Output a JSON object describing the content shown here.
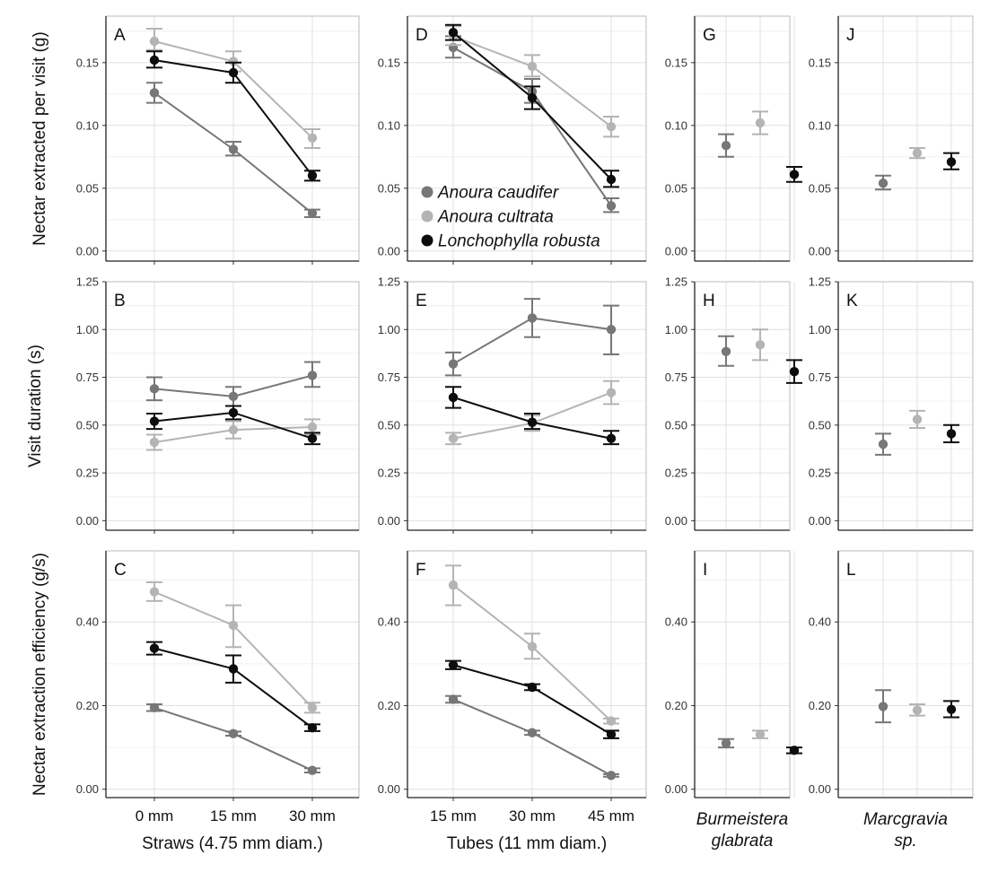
{
  "colors": {
    "Anoura caudifer": "#777777",
    "Anoura cultrata": "#b4b4b4",
    "Lonchophylla robusta": "#0d0d0d"
  },
  "chart_data": {
    "type": "line",
    "legend": {
      "entries": [
        "Anoura caudifer",
        "Anoura cultrata",
        "Lonchophylla robusta"
      ],
      "placement": "panel D, bottom-left"
    },
    "row_ylabels": [
      "Nectar extracted per visit (g)",
      "Visit duration (s)",
      "Nectar extraction efficiency (g/s)"
    ],
    "row_ticks": [
      [
        "0.00",
        "0.05",
        "0.10",
        "0.15"
      ],
      [
        "0.00",
        "0.25",
        "0.50",
        "0.75",
        "1.00",
        "1.25"
      ],
      [
        "0.00",
        "0.20",
        "0.40"
      ]
    ],
    "row_ranges": [
      [
        -0.008,
        0.187
      ],
      [
        -0.05,
        1.25
      ],
      [
        -0.02,
        0.57
      ]
    ],
    "column_xlabels": [
      {
        "line1": "Straws (4.75 mm diam.)",
        "italic": false
      },
      {
        "line1": "Tubes (11 mm diam.)",
        "italic": false
      },
      {
        "line1": "Burmeistera",
        "line2": "glabrata",
        "italic": true
      },
      {
        "line1": "Marcgravia",
        "line2": "sp.",
        "italic": true
      }
    ],
    "column_categories": [
      [
        "0 mm",
        "15 mm",
        "30 mm"
      ],
      [
        "15 mm",
        "30 mm",
        "45 mm"
      ],
      [],
      []
    ],
    "panels": [
      {
        "label": "A",
        "row": 0,
        "col": 0,
        "connected": true,
        "series": [
          {
            "name": "Anoura caudifer",
            "points": [
              {
                "y": 0.126,
                "lo": 0.118,
                "hi": 0.134
              },
              {
                "y": 0.081,
                "lo": 0.076,
                "hi": 0.087
              },
              {
                "y": 0.03,
                "lo": 0.027,
                "hi": 0.033
              }
            ]
          },
          {
            "name": "Anoura cultrata",
            "points": [
              {
                "y": 0.167,
                "lo": 0.16,
                "hi": 0.177
              },
              {
                "y": 0.151,
                "lo": 0.143,
                "hi": 0.159
              },
              {
                "y": 0.09,
                "lo": 0.082,
                "hi": 0.097
              }
            ]
          },
          {
            "name": "Lonchophylla robusta",
            "points": [
              {
                "y": 0.152,
                "lo": 0.146,
                "hi": 0.159
              },
              {
                "y": 0.142,
                "lo": 0.134,
                "hi": 0.15
              },
              {
                "y": 0.06,
                "lo": 0.056,
                "hi": 0.064
              }
            ]
          }
        ]
      },
      {
        "label": "B",
        "row": 1,
        "col": 0,
        "connected": true,
        "series": [
          {
            "name": "Anoura caudifer",
            "points": [
              {
                "y": 0.69,
                "lo": 0.63,
                "hi": 0.75
              },
              {
                "y": 0.65,
                "lo": 0.6,
                "hi": 0.7
              },
              {
                "y": 0.76,
                "lo": 0.7,
                "hi": 0.83
              }
            ]
          },
          {
            "name": "Anoura cultrata",
            "points": [
              {
                "y": 0.41,
                "lo": 0.37,
                "hi": 0.45
              },
              {
                "y": 0.475,
                "lo": 0.43,
                "hi": 0.52
              },
              {
                "y": 0.49,
                "lo": 0.45,
                "hi": 0.53
              }
            ]
          },
          {
            "name": "Lonchophylla robusta",
            "points": [
              {
                "y": 0.52,
                "lo": 0.48,
                "hi": 0.56
              },
              {
                "y": 0.565,
                "lo": 0.53,
                "hi": 0.6
              },
              {
                "y": 0.43,
                "lo": 0.4,
                "hi": 0.46
              }
            ]
          }
        ]
      },
      {
        "label": "C",
        "row": 2,
        "col": 0,
        "connected": true,
        "series": [
          {
            "name": "Anoura caudifer",
            "points": [
              {
                "y": 0.195,
                "lo": 0.187,
                "hi": 0.203
              },
              {
                "y": 0.133,
                "lo": 0.128,
                "hi": 0.138
              },
              {
                "y": 0.045,
                "lo": 0.04,
                "hi": 0.05
              }
            ]
          },
          {
            "name": "Anoura cultrata",
            "points": [
              {
                "y": 0.472,
                "lo": 0.45,
                "hi": 0.495
              },
              {
                "y": 0.392,
                "lo": 0.34,
                "hi": 0.44
              },
              {
                "y": 0.195,
                "lo": 0.183,
                "hi": 0.207
              }
            ]
          },
          {
            "name": "Lonchophylla robusta",
            "points": [
              {
                "y": 0.337,
                "lo": 0.322,
                "hi": 0.352
              },
              {
                "y": 0.288,
                "lo": 0.255,
                "hi": 0.32
              },
              {
                "y": 0.147,
                "lo": 0.139,
                "hi": 0.155
              }
            ]
          }
        ]
      },
      {
        "label": "D",
        "row": 0,
        "col": 1,
        "connected": true,
        "series": [
          {
            "name": "Anoura caudifer",
            "points": [
              {
                "y": 0.162,
                "lo": 0.154,
                "hi": 0.171
              },
              {
                "y": 0.127,
                "lo": 0.118,
                "hi": 0.137
              },
              {
                "y": 0.036,
                "lo": 0.031,
                "hi": 0.042
              }
            ]
          },
          {
            "name": "Anoura cultrata",
            "points": [
              {
                "y": 0.171,
                "lo": 0.164,
                "hi": 0.179
              },
              {
                "y": 0.147,
                "lo": 0.139,
                "hi": 0.156
              },
              {
                "y": 0.099,
                "lo": 0.091,
                "hi": 0.107
              }
            ]
          },
          {
            "name": "Lonchophylla robusta",
            "points": [
              {
                "y": 0.174,
                "lo": 0.168,
                "hi": 0.18
              },
              {
                "y": 0.122,
                "lo": 0.113,
                "hi": 0.131
              },
              {
                "y": 0.057,
                "lo": 0.051,
                "hi": 0.064
              }
            ]
          }
        ]
      },
      {
        "label": "E",
        "row": 1,
        "col": 1,
        "connected": true,
        "series": [
          {
            "name": "Anoura caudifer",
            "points": [
              {
                "y": 0.82,
                "lo": 0.76,
                "hi": 0.88
              },
              {
                "y": 1.06,
                "lo": 0.96,
                "hi": 1.16
              },
              {
                "y": 1.0,
                "lo": 0.87,
                "hi": 1.125
              }
            ]
          },
          {
            "name": "Anoura cultrata",
            "points": [
              {
                "y": 0.43,
                "lo": 0.4,
                "hi": 0.46
              },
              {
                "y": 0.51,
                "lo": 0.47,
                "hi": 0.55
              },
              {
                "y": 0.67,
                "lo": 0.61,
                "hi": 0.73
              }
            ]
          },
          {
            "name": "Lonchophylla robusta",
            "points": [
              {
                "y": 0.645,
                "lo": 0.59,
                "hi": 0.7
              },
              {
                "y": 0.515,
                "lo": 0.48,
                "hi": 0.56
              },
              {
                "y": 0.43,
                "lo": 0.4,
                "hi": 0.47
              }
            ]
          }
        ]
      },
      {
        "label": "F",
        "row": 2,
        "col": 1,
        "connected": true,
        "series": [
          {
            "name": "Anoura caudifer",
            "points": [
              {
                "y": 0.215,
                "lo": 0.207,
                "hi": 0.223
              },
              {
                "y": 0.135,
                "lo": 0.13,
                "hi": 0.14
              },
              {
                "y": 0.033,
                "lo": 0.03,
                "hi": 0.036
              }
            ]
          },
          {
            "name": "Anoura cultrata",
            "points": [
              {
                "y": 0.488,
                "lo": 0.44,
                "hi": 0.535
              },
              {
                "y": 0.341,
                "lo": 0.312,
                "hi": 0.372
              },
              {
                "y": 0.163,
                "lo": 0.157,
                "hi": 0.169
              }
            ]
          },
          {
            "name": "Lonchophylla robusta",
            "points": [
              {
                "y": 0.297,
                "lo": 0.287,
                "hi": 0.307
              },
              {
                "y": 0.244,
                "lo": 0.237,
                "hi": 0.251
              },
              {
                "y": 0.131,
                "lo": 0.122,
                "hi": 0.14
              }
            ]
          }
        ]
      },
      {
        "label": "G",
        "row": 0,
        "col": 2,
        "connected": false,
        "series": [
          {
            "name": "Anoura caudifer",
            "points": [
              {
                "y": 0.084,
                "lo": 0.075,
                "hi": 0.093
              }
            ]
          },
          {
            "name": "Anoura cultrata",
            "points": [
              {
                "y": 0.102,
                "lo": 0.093,
                "hi": 0.111
              }
            ]
          },
          {
            "name": "Lonchophylla robusta",
            "points": [
              {
                "y": 0.061,
                "lo": 0.055,
                "hi": 0.067
              }
            ]
          }
        ]
      },
      {
        "label": "H",
        "row": 1,
        "col": 2,
        "connected": false,
        "series": [
          {
            "name": "Anoura caudifer",
            "points": [
              {
                "y": 0.885,
                "lo": 0.81,
                "hi": 0.965
              }
            ]
          },
          {
            "name": "Anoura cultrata",
            "points": [
              {
                "y": 0.92,
                "lo": 0.84,
                "hi": 1.0
              }
            ]
          },
          {
            "name": "Lonchophylla robusta",
            "points": [
              {
                "y": 0.78,
                "lo": 0.72,
                "hi": 0.84
              }
            ]
          }
        ]
      },
      {
        "label": "I",
        "row": 2,
        "col": 2,
        "connected": false,
        "series": [
          {
            "name": "Anoura caudifer",
            "points": [
              {
                "y": 0.11,
                "lo": 0.1,
                "hi": 0.12
              }
            ]
          },
          {
            "name": "Anoura cultrata",
            "points": [
              {
                "y": 0.131,
                "lo": 0.122,
                "hi": 0.14
              }
            ]
          },
          {
            "name": "Lonchophylla robusta",
            "points": [
              {
                "y": 0.093,
                "lo": 0.086,
                "hi": 0.1
              }
            ]
          }
        ]
      },
      {
        "label": "J",
        "row": 0,
        "col": 3,
        "connected": false,
        "series": [
          {
            "name": "Anoura caudifer",
            "points": [
              {
                "y": 0.054,
                "lo": 0.049,
                "hi": 0.06
              }
            ]
          },
          {
            "name": "Anoura cultrata",
            "points": [
              {
                "y": 0.078,
                "lo": 0.074,
                "hi": 0.082
              }
            ]
          },
          {
            "name": "Lonchophylla robusta",
            "points": [
              {
                "y": 0.071,
                "lo": 0.065,
                "hi": 0.078
              }
            ]
          }
        ]
      },
      {
        "label": "K",
        "row": 1,
        "col": 3,
        "connected": false,
        "series": [
          {
            "name": "Anoura caudifer",
            "points": [
              {
                "y": 0.4,
                "lo": 0.345,
                "hi": 0.455
              }
            ]
          },
          {
            "name": "Anoura cultrata",
            "points": [
              {
                "y": 0.53,
                "lo": 0.485,
                "hi": 0.575
              }
            ]
          },
          {
            "name": "Lonchophylla robusta",
            "points": [
              {
                "y": 0.455,
                "lo": 0.41,
                "hi": 0.5
              }
            ]
          }
        ]
      },
      {
        "label": "L",
        "row": 2,
        "col": 3,
        "connected": false,
        "series": [
          {
            "name": "Anoura caudifer",
            "points": [
              {
                "y": 0.198,
                "lo": 0.16,
                "hi": 0.237
              }
            ]
          },
          {
            "name": "Anoura cultrata",
            "points": [
              {
                "y": 0.189,
                "lo": 0.176,
                "hi": 0.203
              }
            ]
          },
          {
            "name": "Lonchophylla robusta",
            "points": [
              {
                "y": 0.191,
                "lo": 0.172,
                "hi": 0.211
              }
            ]
          }
        ]
      }
    ]
  }
}
